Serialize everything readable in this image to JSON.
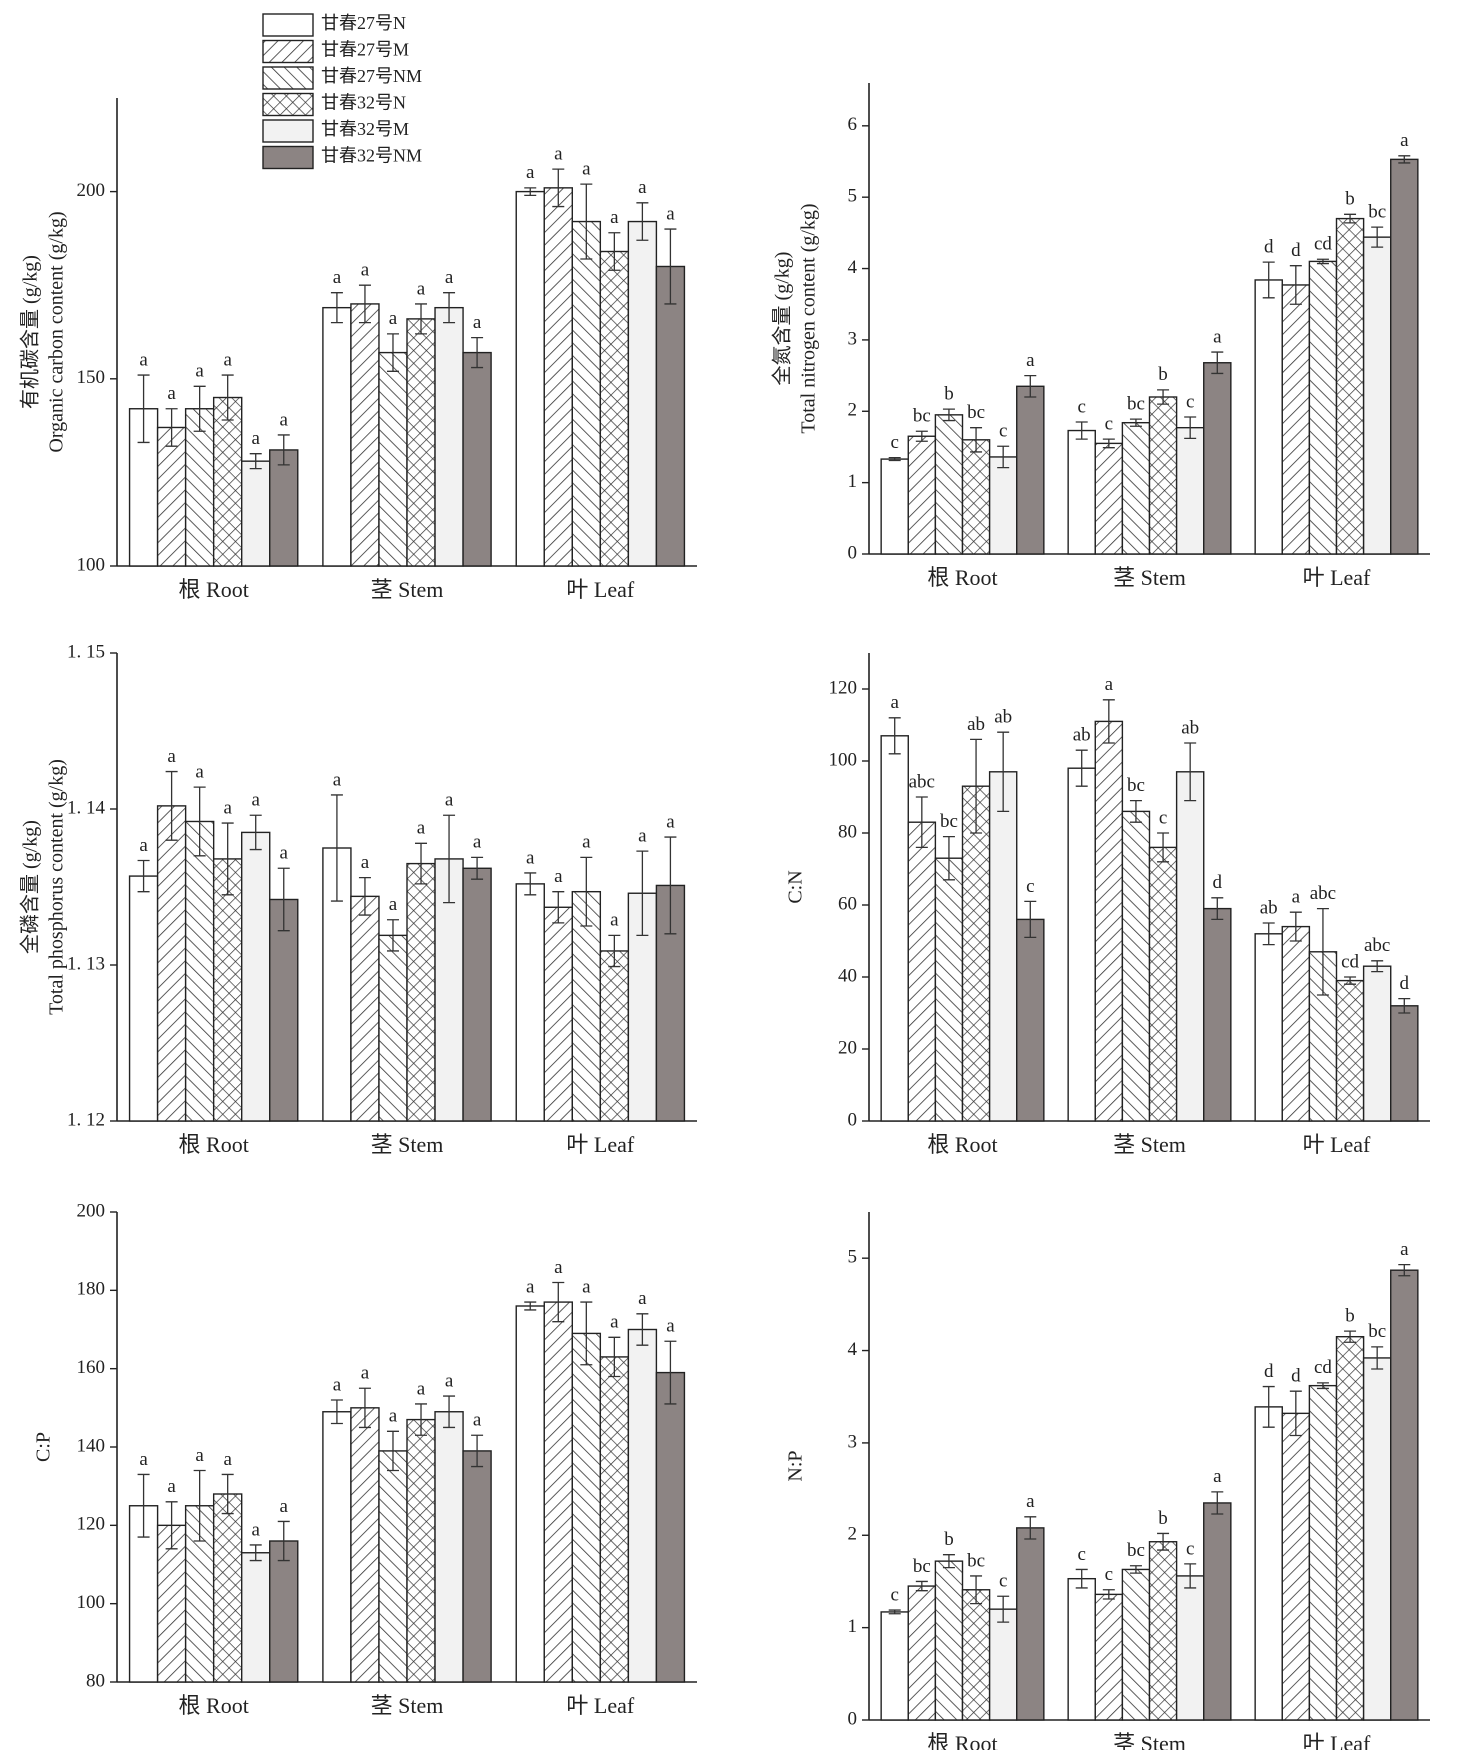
{
  "chart_data": [
    {
      "type": "bar",
      "ylabel": [
        "有机碳含量 (g/kg)",
        "Organic carbon content (g/kg)"
      ],
      "legend": "upper-left",
      "categories": [
        "根 Root",
        "茎 Stem",
        "叶 Leaf"
      ],
      "ylim": [
        100,
        225
      ],
      "yticks": [
        100,
        150,
        200
      ],
      "series": [
        {
          "name": "甘春27号N",
          "color": "#ffffff",
          "pattern": "solid",
          "values": [
            142,
            169,
            200
          ],
          "errors": [
            9,
            4,
            1
          ],
          "labels": [
            "a",
            "a",
            "a"
          ]
        },
        {
          "name": "甘春27号M",
          "color": "#ffffff",
          "pattern": "hatch-right",
          "values": [
            137,
            170,
            201
          ],
          "errors": [
            5,
            5,
            5
          ],
          "labels": [
            "a",
            "a",
            "a"
          ]
        },
        {
          "name": "甘春27号NM",
          "color": "#ffffff",
          "pattern": "hatch-left",
          "values": [
            142,
            157,
            192
          ],
          "errors": [
            6,
            5,
            10
          ],
          "labels": [
            "a",
            "a",
            "a"
          ]
        },
        {
          "name": "甘春32号N",
          "color": "#ffffff",
          "pattern": "crosshatch",
          "values": [
            145,
            166,
            184
          ],
          "errors": [
            6,
            4,
            5
          ],
          "labels": [
            "a",
            "a",
            "a"
          ]
        },
        {
          "name": "甘春32号M",
          "color": "#f2f2f2",
          "pattern": "solid",
          "values": [
            128,
            169,
            192
          ],
          "errors": [
            2,
            4,
            5
          ],
          "labels": [
            "a",
            "a",
            "a"
          ]
        },
        {
          "name": "甘春32号NM",
          "color": "#8c8483",
          "pattern": "solid",
          "values": [
            131,
            157,
            180
          ],
          "errors": [
            4,
            4,
            10
          ],
          "labels": [
            "a",
            "a",
            "a"
          ]
        }
      ]
    },
    {
      "type": "bar",
      "ylabel": [
        "全氮含量 (g/kg)",
        "Total nitrogen content (g/kg)"
      ],
      "categories": [
        "根 Root",
        "茎 Stem",
        "叶 Leaf"
      ],
      "ylim": [
        0,
        6.6
      ],
      "yticks": [
        0,
        1,
        2,
        3,
        4,
        5,
        6
      ],
      "series": [
        {
          "color": "#ffffff",
          "pattern": "solid",
          "values": [
            1.33,
            1.73,
            3.84
          ],
          "errors": [
            0.02,
            0.12,
            0.25
          ],
          "labels": [
            "c",
            "c",
            "d"
          ]
        },
        {
          "color": "#ffffff",
          "pattern": "hatch-right",
          "values": [
            1.65,
            1.55,
            3.77
          ],
          "errors": [
            0.07,
            0.06,
            0.27
          ],
          "labels": [
            "bc",
            "c",
            "d"
          ]
        },
        {
          "color": "#ffffff",
          "pattern": "hatch-left",
          "values": [
            1.95,
            1.84,
            4.1
          ],
          "errors": [
            0.08,
            0.05,
            0.03
          ],
          "labels": [
            "b",
            "bc",
            "cd"
          ]
        },
        {
          "color": "#ffffff",
          "pattern": "crosshatch",
          "values": [
            1.6,
            2.2,
            4.7
          ],
          "errors": [
            0.17,
            0.1,
            0.06
          ],
          "labels": [
            "bc",
            "b",
            "b"
          ]
        },
        {
          "color": "#f2f2f2",
          "pattern": "solid",
          "values": [
            1.36,
            1.77,
            4.44
          ],
          "errors": [
            0.15,
            0.15,
            0.14
          ],
          "labels": [
            "c",
            "c",
            "bc"
          ]
        },
        {
          "color": "#8c8483",
          "pattern": "solid",
          "values": [
            2.35,
            2.68,
            5.53
          ],
          "errors": [
            0.15,
            0.15,
            0.05
          ],
          "labels": [
            "a",
            "a",
            "a"
          ]
        }
      ]
    },
    {
      "type": "bar",
      "ylabel": [
        "全磷含量 (g/kg)",
        "Total phosphorus content (g/kg)"
      ],
      "categories": [
        "根 Root",
        "茎 Stem",
        "叶 Leaf"
      ],
      "ylim": [
        1.12,
        1.15
      ],
      "yticks": [
        {
          "value": 1.12,
          "label": "1. 12"
        },
        {
          "value": 1.13,
          "label": "1. 13"
        },
        {
          "value": 1.14,
          "label": "1. 14"
        },
        {
          "value": 1.15,
          "label": "1. 15"
        }
      ],
      "series": [
        {
          "color": "#ffffff",
          "pattern": "solid",
          "values": [
            1.1357,
            1.1375,
            1.1352
          ],
          "errors": [
            0.001,
            0.0034,
            0.0007
          ],
          "labels": [
            "a",
            "a",
            "a"
          ]
        },
        {
          "color": "#ffffff",
          "pattern": "hatch-right",
          "values": [
            1.1402,
            1.1344,
            1.1337
          ],
          "errors": [
            0.0022,
            0.0012,
            0.001
          ],
          "labels": [
            "a",
            "a",
            "a"
          ]
        },
        {
          "color": "#ffffff",
          "pattern": "hatch-left",
          "values": [
            1.1392,
            1.1319,
            1.1347
          ],
          "errors": [
            0.0022,
            0.001,
            0.0022
          ],
          "labels": [
            "a",
            "a",
            "a"
          ]
        },
        {
          "color": "#ffffff",
          "pattern": "crosshatch",
          "values": [
            1.1368,
            1.1365,
            1.1309
          ],
          "errors": [
            0.0023,
            0.0013,
            0.001
          ],
          "labels": [
            "a",
            "a",
            "a"
          ]
        },
        {
          "color": "#f2f2f2",
          "pattern": "solid",
          "values": [
            1.1385,
            1.1368,
            1.1346
          ],
          "errors": [
            0.0011,
            0.0028,
            0.0027
          ],
          "labels": [
            "a",
            "a",
            "a"
          ]
        },
        {
          "color": "#8c8483",
          "pattern": "solid",
          "values": [
            1.1342,
            1.1362,
            1.1351
          ],
          "errors": [
            0.002,
            0.0007,
            0.0031
          ],
          "labels": [
            "a",
            "a",
            "a"
          ]
        }
      ]
    },
    {
      "type": "bar",
      "ylabel": [
        "C:N"
      ],
      "categories": [
        "根 Root",
        "茎 Stem",
        "叶 Leaf"
      ],
      "ylim": [
        0,
        130
      ],
      "yticks": [
        0,
        20,
        40,
        60,
        80,
        100,
        120
      ],
      "series": [
        {
          "color": "#ffffff",
          "pattern": "solid",
          "values": [
            107,
            98,
            52
          ],
          "errors": [
            5,
            5,
            3
          ],
          "labels": [
            "a",
            "ab",
            "ab"
          ]
        },
        {
          "color": "#ffffff",
          "pattern": "hatch-right",
          "values": [
            83,
            111,
            54
          ],
          "errors": [
            7,
            6,
            4
          ],
          "labels": [
            "abc",
            "a",
            "a"
          ]
        },
        {
          "color": "#ffffff",
          "pattern": "hatch-left",
          "values": [
            73,
            86,
            47
          ],
          "errors": [
            6,
            3,
            12
          ],
          "labels": [
            "bc",
            "bc",
            "abc"
          ]
        },
        {
          "color": "#ffffff",
          "pattern": "crosshatch",
          "values": [
            93,
            76,
            39
          ],
          "errors": [
            13,
            4,
            1
          ],
          "labels": [
            "ab",
            "c",
            "cd"
          ]
        },
        {
          "color": "#f2f2f2",
          "pattern": "solid",
          "values": [
            97,
            97,
            43
          ],
          "errors": [
            11,
            8,
            1.5
          ],
          "labels": [
            "ab",
            "ab",
            "abc"
          ]
        },
        {
          "color": "#8c8483",
          "pattern": "solid",
          "values": [
            56,
            59,
            32
          ],
          "errors": [
            5,
            3,
            2
          ],
          "labels": [
            "c",
            "d",
            "d"
          ]
        }
      ]
    },
    {
      "type": "bar",
      "ylabel": [
        "C:P"
      ],
      "categories": [
        "根 Root",
        "茎 Stem",
        "叶 Leaf"
      ],
      "ylim": [
        80,
        200
      ],
      "yticks": [
        80,
        100,
        120,
        140,
        160,
        180,
        200
      ],
      "series": [
        {
          "color": "#ffffff",
          "pattern": "solid",
          "values": [
            125,
            149,
            176
          ],
          "errors": [
            8,
            3,
            1
          ],
          "labels": [
            "a",
            "a",
            "a"
          ]
        },
        {
          "color": "#ffffff",
          "pattern": "hatch-right",
          "values": [
            120,
            150,
            177
          ],
          "errors": [
            6,
            5,
            5
          ],
          "labels": [
            "a",
            "a",
            "a"
          ]
        },
        {
          "color": "#ffffff",
          "pattern": "hatch-left",
          "values": [
            125,
            139,
            169
          ],
          "errors": [
            9,
            5,
            8
          ],
          "labels": [
            "a",
            "a",
            "a"
          ]
        },
        {
          "color": "#ffffff",
          "pattern": "crosshatch",
          "values": [
            128,
            147,
            163
          ],
          "errors": [
            5,
            4,
            5
          ],
          "labels": [
            "a",
            "a",
            "a"
          ]
        },
        {
          "color": "#f2f2f2",
          "pattern": "solid",
          "values": [
            113,
            149,
            170
          ],
          "errors": [
            2,
            4,
            4
          ],
          "labels": [
            "a",
            "a",
            "a"
          ]
        },
        {
          "color": "#8c8483",
          "pattern": "solid",
          "values": [
            116,
            139,
            159
          ],
          "errors": [
            5,
            4,
            8
          ],
          "labels": [
            "a",
            "a",
            "a"
          ]
        }
      ]
    },
    {
      "type": "bar",
      "ylabel": [
        "N:P"
      ],
      "categories": [
        "根 Root",
        "茎 Stem",
        "叶 Leaf"
      ],
      "ylim": [
        0,
        5.5
      ],
      "yticks": [
        0,
        1,
        2,
        3,
        4,
        5
      ],
      "series": [
        {
          "color": "#ffffff",
          "pattern": "solid",
          "values": [
            1.17,
            1.53,
            3.39
          ],
          "errors": [
            0.02,
            0.1,
            0.22
          ],
          "labels": [
            "c",
            "c",
            "d"
          ]
        },
        {
          "color": "#ffffff",
          "pattern": "hatch-right",
          "values": [
            1.45,
            1.36,
            3.32
          ],
          "errors": [
            0.05,
            0.05,
            0.24
          ],
          "labels": [
            "bc",
            "c",
            "d"
          ]
        },
        {
          "color": "#ffffff",
          "pattern": "hatch-left",
          "values": [
            1.72,
            1.63,
            3.62
          ],
          "errors": [
            0.07,
            0.04,
            0.03
          ],
          "labels": [
            "b",
            "bc",
            "cd"
          ]
        },
        {
          "color": "#ffffff",
          "pattern": "crosshatch",
          "values": [
            1.41,
            1.93,
            4.15
          ],
          "errors": [
            0.15,
            0.09,
            0.06
          ],
          "labels": [
            "bc",
            "b",
            "b"
          ]
        },
        {
          "color": "#f2f2f2",
          "pattern": "solid",
          "values": [
            1.2,
            1.56,
            3.92
          ],
          "errors": [
            0.14,
            0.13,
            0.12
          ],
          "labels": [
            "c",
            "c",
            "bc"
          ]
        },
        {
          "color": "#8c8483",
          "pattern": "solid",
          "values": [
            2.08,
            2.35,
            4.87
          ],
          "errors": [
            0.12,
            0.12,
            0.06
          ],
          "labels": [
            "a",
            "a",
            "a"
          ]
        }
      ]
    }
  ]
}
